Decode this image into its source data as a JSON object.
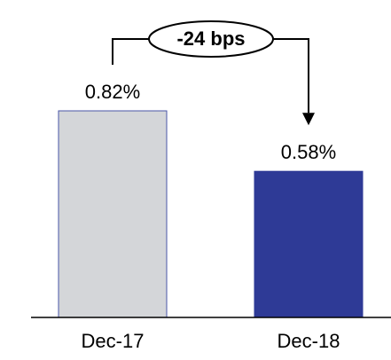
{
  "chart_data": {
    "type": "bar",
    "title": "",
    "xlabel": "",
    "ylabel": "",
    "categories": [
      "Dec-17",
      "Dec-18"
    ],
    "values": [
      0.82,
      0.58
    ],
    "data_labels": [
      "0.82%",
      "0.58%"
    ],
    "unit": "%",
    "ylim": [
      0,
      1.0
    ],
    "grid": false,
    "legend": "none",
    "bar_colors": [
      "#d4d6d9",
      "#2e3a96"
    ],
    "bar_edge_colors": [
      "#4a56a8",
      "#2e3a96"
    ],
    "annotation": {
      "text": "-24 bps",
      "from_category": "Dec-17",
      "to_category": "Dec-18",
      "arrow": "down-into-second-bar"
    }
  }
}
